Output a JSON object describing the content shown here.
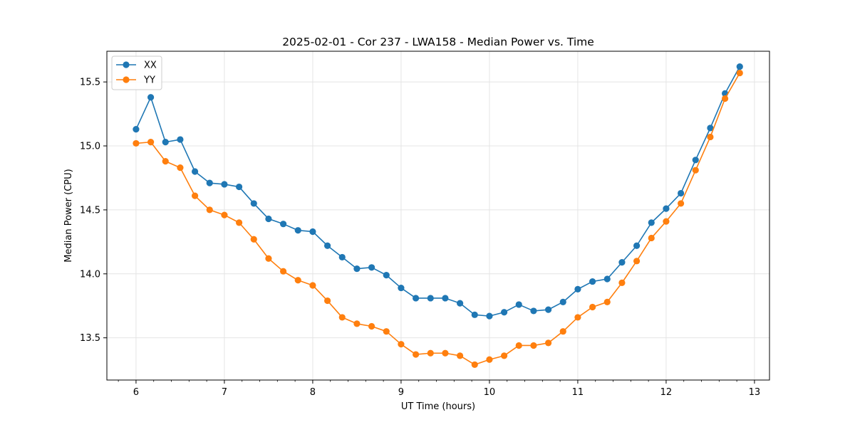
{
  "chart_data": {
    "type": "line",
    "title": "2025-02-01 - Cor 237 - LWA158 - Median Power vs. Time",
    "xlabel": "UT Time (hours)",
    "ylabel": "Median Power (CPU)",
    "xlim": [
      5.67,
      13.17
    ],
    "ylim": [
      13.17,
      15.74
    ],
    "x_ticks": [
      6,
      7,
      8,
      9,
      10,
      11,
      12,
      13
    ],
    "y_ticks": [
      13.5,
      14.0,
      14.5,
      15.0,
      15.5
    ],
    "x_tick_labels": [
      "6",
      "7",
      "8",
      "9",
      "10",
      "11",
      "12",
      "13"
    ],
    "y_tick_labels": [
      "13.5",
      "14.0",
      "14.5",
      "15.0",
      "15.5"
    ],
    "x_minor_step": 0.2,
    "grid": true,
    "legend_position": "top-left",
    "x": [
      6.0,
      6.1667,
      6.3333,
      6.5,
      6.6667,
      6.8333,
      7.0,
      7.1667,
      7.3333,
      7.5,
      7.6667,
      7.8333,
      8.0,
      8.1667,
      8.3333,
      8.5,
      8.6667,
      8.8333,
      9.0,
      9.1667,
      9.3333,
      9.5,
      9.6667,
      9.8333,
      10.0,
      10.1667,
      10.3333,
      10.5,
      10.6667,
      10.8333,
      11.0,
      11.1667,
      11.3333,
      11.5,
      11.6667,
      11.8333,
      12.0,
      12.1667,
      12.3333,
      12.5,
      12.6667,
      12.8333
    ],
    "series": [
      {
        "name": "XX",
        "color": "#1f77b4",
        "values": [
          15.13,
          15.38,
          15.03,
          15.05,
          14.8,
          14.71,
          14.7,
          14.68,
          14.55,
          14.43,
          14.39,
          14.34,
          14.33,
          14.22,
          14.13,
          14.04,
          14.05,
          13.99,
          13.89,
          13.81,
          13.81,
          13.81,
          13.77,
          13.68,
          13.67,
          13.7,
          13.76,
          13.71,
          13.72,
          13.78,
          13.88,
          13.94,
          13.96,
          14.09,
          14.22,
          14.4,
          14.51,
          14.63,
          14.89,
          15.14,
          15.41,
          15.62
        ]
      },
      {
        "name": "YY",
        "color": "#ff7f0e",
        "values": [
          15.02,
          15.03,
          14.88,
          14.83,
          14.61,
          14.5,
          14.46,
          14.4,
          14.27,
          14.12,
          14.02,
          13.95,
          13.91,
          13.79,
          13.66,
          13.61,
          13.59,
          13.55,
          13.45,
          13.37,
          13.38,
          13.38,
          13.36,
          13.29,
          13.33,
          13.36,
          13.44,
          13.44,
          13.46,
          13.55,
          13.66,
          13.74,
          13.78,
          13.93,
          14.1,
          14.28,
          14.41,
          14.55,
          14.81,
          15.07,
          15.37,
          15.57
        ]
      }
    ]
  }
}
